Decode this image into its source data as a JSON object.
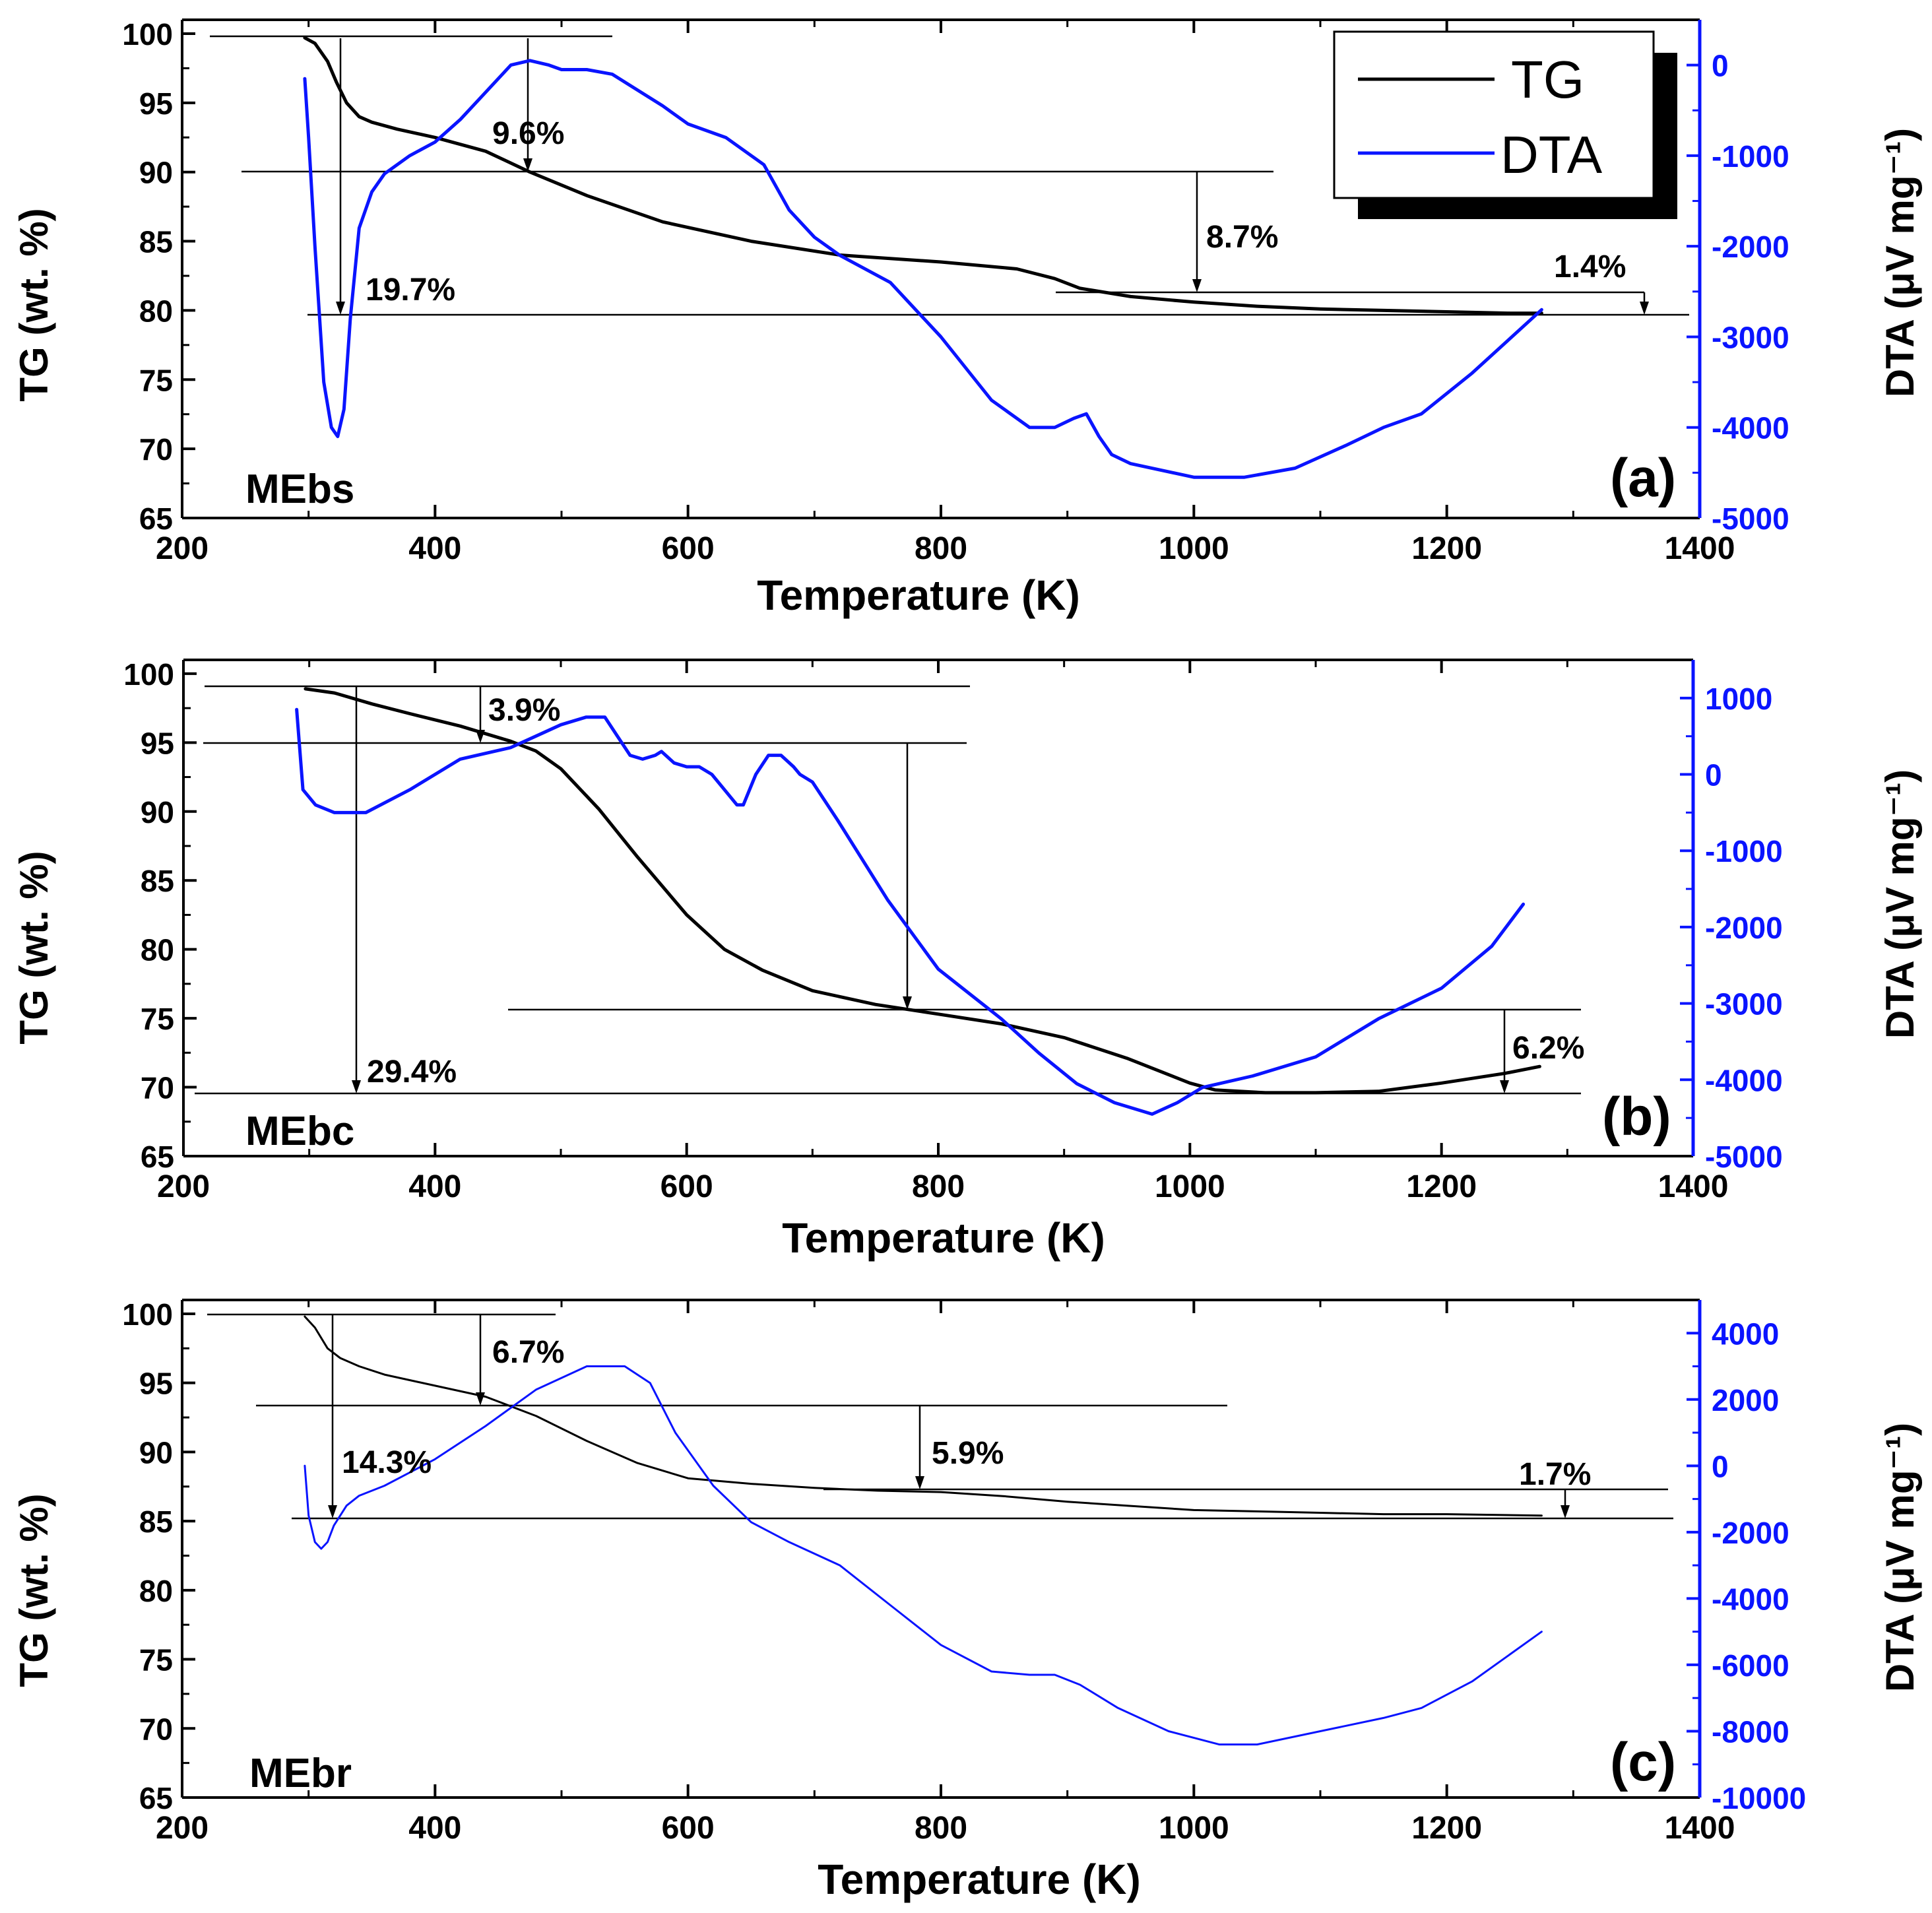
{
  "chart_data": [
    {
      "type": "line",
      "panel_label": "(a)",
      "sample": "MEbs",
      "xlabel": "Temperature (K)",
      "ylabel": "TG (wt. %)",
      "y2label": "DTA (μV mg⁻¹)",
      "xlim": [
        200,
        1400
      ],
      "ylim": [
        65,
        101
      ],
      "y2lim": [
        -5000,
        500
      ],
      "xticks": [
        200,
        400,
        600,
        800,
        1000,
        1200,
        1400
      ],
      "yticks": [
        65,
        70,
        75,
        80,
        85,
        90,
        95,
        100
      ],
      "y2ticks": [
        -5000,
        -4000,
        -3000,
        -2000,
        -1000,
        0
      ],
      "colors": {
        "TG": "#000000",
        "DTA": "#0a14ff"
      },
      "legend": {
        "entries": [
          "TG",
          "DTA"
        ],
        "placement": "top-right"
      },
      "series": [
        {
          "name": "TG",
          "axis": "left",
          "width": "thick",
          "x": [
            297,
            305,
            315,
            322,
            330,
            340,
            350,
            370,
            400,
            440,
            475,
            520,
            580,
            650,
            720,
            800,
            860,
            890,
            910,
            950,
            1000,
            1050,
            1100,
            1150,
            1200,
            1250,
            1275
          ],
          "y": [
            99.7,
            99.3,
            98,
            96.5,
            95,
            94,
            93.6,
            93.1,
            92.5,
            91.5,
            90.0,
            88.3,
            86.4,
            85.0,
            84.0,
            83.5,
            83.0,
            82.3,
            81.6,
            81.0,
            80.6,
            80.3,
            80.1,
            80.0,
            79.9,
            79.8,
            79.8
          ]
        },
        {
          "name": "DTA",
          "axis": "right",
          "width": "thick",
          "x": [
            297,
            300,
            305,
            312,
            318,
            323,
            328,
            333,
            340,
            350,
            360,
            380,
            400,
            420,
            440,
            460,
            475,
            490,
            500,
            520,
            540,
            580,
            600,
            630,
            660,
            680,
            700,
            720,
            760,
            800,
            840,
            870,
            890,
            905,
            915,
            925,
            935,
            950,
            1000,
            1040,
            1080,
            1120,
            1150,
            1180,
            1220,
            1275
          ],
          "y": [
            -150,
            -800,
            -2000,
            -3500,
            -4000,
            -4100,
            -3800,
            -2800,
            -1800,
            -1400,
            -1200,
            -1000,
            -850,
            -600,
            -300,
            0,
            50,
            0,
            -50,
            -50,
            -100,
            -450,
            -650,
            -800,
            -1100,
            -1600,
            -1900,
            -2100,
            -2400,
            -3000,
            -3700,
            -4000,
            -4000,
            -3900,
            -3850,
            -4100,
            -4300,
            -4400,
            -4550,
            -4550,
            -4450,
            -4200,
            -4000,
            -3850,
            -3400,
            -2700
          ]
        }
      ],
      "annotations": [
        "9.6%",
        "19.7%",
        "8.7%",
        "1.4%"
      ]
    },
    {
      "type": "line",
      "panel_label": "(b)",
      "sample": "MEbc",
      "xlabel": "Temperature (K)",
      "ylabel": "TG (wt. %)",
      "y2label": "DTA (μV mg⁻¹)",
      "xlim": [
        200,
        1400
      ],
      "ylim": [
        65,
        101
      ],
      "y2lim": [
        -5000,
        1500
      ],
      "xticks": [
        200,
        400,
        600,
        800,
        1000,
        1200,
        1400
      ],
      "yticks": [
        65,
        70,
        75,
        80,
        85,
        90,
        95,
        100
      ],
      "y2ticks": [
        -5000,
        -4000,
        -3000,
        -2000,
        -1000,
        0,
        1000
      ],
      "colors": {
        "TG": "#000000",
        "DTA": "#0a14ff"
      },
      "series": [
        {
          "name": "TG",
          "axis": "left",
          "width": "thick",
          "x": [
            297,
            320,
            350,
            380,
            420,
            460,
            480,
            500,
            530,
            560,
            600,
            630,
            660,
            700,
            750,
            800,
            850,
            900,
            950,
            1000,
            1020,
            1060,
            1100,
            1150,
            1200,
            1250,
            1278
          ],
          "y": [
            98.9,
            98.6,
            97.8,
            97.1,
            96.2,
            95.1,
            94.4,
            93.1,
            90.2,
            86.8,
            82.5,
            80.0,
            78.5,
            77.0,
            76.0,
            75.3,
            74.6,
            73.6,
            72.1,
            70.3,
            69.8,
            69.6,
            69.6,
            69.7,
            70.3,
            71.0,
            71.5
          ]
        },
        {
          "name": "DTA",
          "axis": "right",
          "width": "thick",
          "x": [
            290,
            295,
            305,
            320,
            345,
            380,
            420,
            460,
            480,
            500,
            520,
            535,
            545,
            555,
            565,
            575,
            580,
            590,
            600,
            610,
            620,
            630,
            640,
            645,
            655,
            665,
            675,
            685,
            690,
            700,
            720,
            760,
            800,
            850,
            880,
            910,
            940,
            970,
            990,
            1010,
            1050,
            1100,
            1150,
            1200,
            1240,
            1265
          ],
          "y": [
            850,
            -200,
            -400,
            -500,
            -500,
            -200,
            200,
            350,
            500,
            650,
            750,
            750,
            500,
            250,
            200,
            250,
            300,
            150,
            100,
            100,
            0,
            -200,
            -400,
            -400,
            0,
            250,
            250,
            100,
            0,
            -100,
            -600,
            -1650,
            -2550,
            -3200,
            -3650,
            -4050,
            -4300,
            -4450,
            -4300,
            -4100,
            -3950,
            -3700,
            -3200,
            -2800,
            -2250,
            -1700
          ]
        }
      ],
      "annotations": [
        "3.9%",
        "29.4%",
        "6.2%"
      ]
    },
    {
      "type": "line",
      "panel_label": "(c)",
      "sample": "MEbr",
      "xlabel": "Temperature (K)",
      "ylabel": "TG (wt. %)",
      "y2label": "DTA (μV mg⁻¹)",
      "xlim": [
        200,
        1400
      ],
      "ylim": [
        65,
        101
      ],
      "y2lim": [
        -10000,
        5000
      ],
      "xticks": [
        200,
        400,
        600,
        800,
        1000,
        1200,
        1400
      ],
      "yticks": [
        65,
        70,
        75,
        80,
        85,
        90,
        95,
        100
      ],
      "y2ticks": [
        -10000,
        -8000,
        -6000,
        -4000,
        -2000,
        0,
        2000,
        4000
      ],
      "colors": {
        "TG": "#000000",
        "DTA": "#0a14ff"
      },
      "series": [
        {
          "name": "TG",
          "axis": "left",
          "width": "thin",
          "x": [
            297,
            305,
            315,
            325,
            340,
            360,
            400,
            440,
            480,
            520,
            560,
            600,
            650,
            700,
            750,
            800,
            850,
            900,
            950,
            1000,
            1050,
            1100,
            1150,
            1200,
            1275
          ],
          "y": [
            99.8,
            99,
            97.5,
            96.8,
            96.2,
            95.6,
            94.8,
            94,
            92.6,
            90.8,
            89.2,
            88.1,
            87.7,
            87.4,
            87.2,
            87.1,
            86.8,
            86.4,
            86.1,
            85.8,
            85.7,
            85.6,
            85.5,
            85.5,
            85.4
          ]
        },
        {
          "name": "DTA",
          "axis": "right",
          "width": "thin",
          "x": [
            297,
            300,
            305,
            310,
            315,
            320,
            330,
            340,
            360,
            380,
            400,
            440,
            480,
            520,
            550,
            570,
            590,
            620,
            650,
            680,
            720,
            760,
            800,
            840,
            870,
            890,
            910,
            940,
            980,
            1020,
            1050,
            1100,
            1150,
            1180,
            1220,
            1275
          ],
          "y": [
            0,
            -1500,
            -2300,
            -2500,
            -2300,
            -1800,
            -1200,
            -900,
            -600,
            -200,
            200,
            1200,
            2300,
            3000,
            3000,
            2500,
            1000,
            -600,
            -1700,
            -2300,
            -3000,
            -4200,
            -5400,
            -6200,
            -6300,
            -6300,
            -6600,
            -7300,
            -8000,
            -8400,
            -8400,
            -8000,
            -7600,
            -7300,
            -6500,
            -5000
          ]
        }
      ],
      "annotations": [
        "6.7%",
        "14.3%",
        "5.9%",
        "1.7%"
      ]
    }
  ]
}
